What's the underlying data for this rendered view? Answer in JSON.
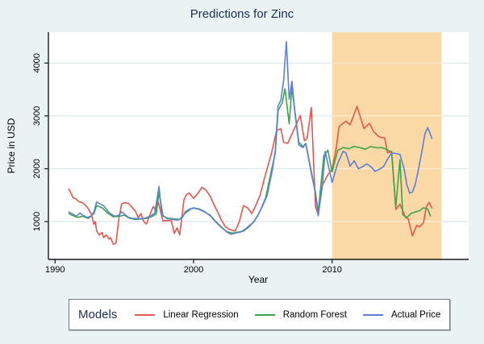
{
  "figure": {
    "title": "Predictions for Zinc"
  },
  "axes": {
    "x_label": "Year",
    "y_label": "Price in USD",
    "x_ticks": [
      1990,
      2000,
      2010
    ],
    "y_ticks": [
      1000,
      2000,
      3000,
      4000
    ]
  },
  "legend": {
    "title": "Models",
    "entries": [
      {
        "label": "Linear Regression",
        "color": "#e3574e"
      },
      {
        "label": "Random Forest",
        "color": "#3aa648"
      },
      {
        "label": "Actual Price",
        "color": "#5d7fd6"
      }
    ]
  },
  "colors": {
    "background": "#eaf2f3",
    "plot_background": "#ffffff",
    "gridline": "#dbe7ec",
    "gridline_over_band": "rgba(255,255,255,0.6)",
    "shaded_band": "#fbd9a6",
    "axis": "#1a1a1a",
    "title_text": "#1b2e55"
  },
  "chart_data": {
    "type": "line",
    "title": "Predictions for Zinc",
    "xlabel": "Year",
    "ylabel": "Price in USD",
    "x_range": [
      1989.5,
      2019.9
    ],
    "y_range": [
      280,
      4585
    ],
    "grid": "horizontal",
    "legend_position": "bottom",
    "shaded_region": {
      "x_start": 2010.0,
      "x_end": 2017.9,
      "meaning": "prediction window"
    },
    "series": [
      {
        "name": "Linear Regression",
        "color": "#e3574e",
        "points": [
          [
            1991.0,
            1615
          ],
          [
            1991.3,
            1450
          ],
          [
            1991.5,
            1430
          ],
          [
            1991.7,
            1380
          ],
          [
            1992.0,
            1355
          ],
          [
            1992.3,
            1280
          ],
          [
            1992.6,
            1155
          ],
          [
            1992.8,
            950
          ],
          [
            1992.9,
            1000
          ],
          [
            1993.0,
            820
          ],
          [
            1993.2,
            745
          ],
          [
            1993.4,
            795
          ],
          [
            1993.5,
            695
          ],
          [
            1993.7,
            745
          ],
          [
            1993.9,
            670
          ],
          [
            1994.0,
            695
          ],
          [
            1994.2,
            570
          ],
          [
            1994.4,
            595
          ],
          [
            1994.6,
            1050
          ],
          [
            1994.8,
            1330
          ],
          [
            1995.0,
            1355
          ],
          [
            1995.3,
            1345
          ],
          [
            1995.6,
            1255
          ],
          [
            1995.8,
            1195
          ],
          [
            1996.0,
            1075
          ],
          [
            1996.2,
            1150
          ],
          [
            1996.4,
            1000
          ],
          [
            1996.6,
            955
          ],
          [
            1997.0,
            1235
          ],
          [
            1997.1,
            1285
          ],
          [
            1997.3,
            1185
          ],
          [
            1997.4,
            1410
          ],
          [
            1997.8,
            1005
          ],
          [
            1998.0,
            1020
          ],
          [
            1998.4,
            1015
          ],
          [
            1998.6,
            775
          ],
          [
            1998.8,
            880
          ],
          [
            1999.0,
            750
          ],
          [
            1999.3,
            1410
          ],
          [
            1999.5,
            1515
          ],
          [
            1999.7,
            1540
          ],
          [
            2000.0,
            1440
          ],
          [
            2000.3,
            1530
          ],
          [
            2000.6,
            1650
          ],
          [
            2000.9,
            1590
          ],
          [
            2001.2,
            1480
          ],
          [
            2001.5,
            1300
          ],
          [
            2001.8,
            1150
          ],
          [
            2002.0,
            1030
          ],
          [
            2002.3,
            900
          ],
          [
            2002.6,
            850
          ],
          [
            2003.0,
            820
          ],
          [
            2003.3,
            1000
          ],
          [
            2003.6,
            1300
          ],
          [
            2003.9,
            1260
          ],
          [
            2004.2,
            1150
          ],
          [
            2004.5,
            1310
          ],
          [
            2004.8,
            1500
          ],
          [
            2005.2,
            1900
          ],
          [
            2005.6,
            2270
          ],
          [
            2006.0,
            2730
          ],
          [
            2006.3,
            2755
          ],
          [
            2006.5,
            2500
          ],
          [
            2006.8,
            2480
          ],
          [
            2007.0,
            2600
          ],
          [
            2007.4,
            2830
          ],
          [
            2007.7,
            3010
          ],
          [
            2008.0,
            2530
          ],
          [
            2008.2,
            2580
          ],
          [
            2008.5,
            3160
          ],
          [
            2008.8,
            1280
          ],
          [
            2009.0,
            1130
          ],
          [
            2009.3,
            1690
          ],
          [
            2009.7,
            1890
          ],
          [
            2010.0,
            1990
          ],
          [
            2010.3,
            2400
          ],
          [
            2010.5,
            2800
          ],
          [
            2011.0,
            2900
          ],
          [
            2011.3,
            2830
          ],
          [
            2011.8,
            3180
          ],
          [
            2012.3,
            2760
          ],
          [
            2012.7,
            2860
          ],
          [
            2013.0,
            2700
          ],
          [
            2013.4,
            2600
          ],
          [
            2013.8,
            2580
          ],
          [
            2014.0,
            2300
          ],
          [
            2014.3,
            2330
          ],
          [
            2014.6,
            1230
          ],
          [
            2014.9,
            1330
          ],
          [
            2015.3,
            1080
          ],
          [
            2015.5,
            1050
          ],
          [
            2015.8,
            725
          ],
          [
            2016.1,
            925
          ],
          [
            2016.3,
            900
          ],
          [
            2016.6,
            975
          ],
          [
            2016.8,
            1280
          ],
          [
            2017.0,
            1360
          ],
          [
            2017.2,
            1260
          ]
        ]
      },
      {
        "name": "Random Forest",
        "color": "#3aa648",
        "points": [
          [
            1991.0,
            1150
          ],
          [
            1991.3,
            1110
          ],
          [
            1991.6,
            1080
          ],
          [
            1992.0,
            1100
          ],
          [
            1992.4,
            1060
          ],
          [
            1992.8,
            1150
          ],
          [
            1993.0,
            1300
          ],
          [
            1993.4,
            1260
          ],
          [
            1993.8,
            1160
          ],
          [
            1994.2,
            1090
          ],
          [
            1994.6,
            1100
          ],
          [
            1995.0,
            1120
          ],
          [
            1995.4,
            1060
          ],
          [
            1995.8,
            1040
          ],
          [
            1996.2,
            1050
          ],
          [
            1996.6,
            1060
          ],
          [
            1997.0,
            1100
          ],
          [
            1997.3,
            1140
          ],
          [
            1997.5,
            1550
          ],
          [
            1997.8,
            1100
          ],
          [
            1998.2,
            1060
          ],
          [
            1998.6,
            1050
          ],
          [
            1999.0,
            1040
          ],
          [
            1999.4,
            1160
          ],
          [
            1999.8,
            1240
          ],
          [
            2000.0,
            1260
          ],
          [
            2000.4,
            1240
          ],
          [
            2000.8,
            1190
          ],
          [
            2001.2,
            1110
          ],
          [
            2001.6,
            990
          ],
          [
            2002.0,
            890
          ],
          [
            2002.4,
            810
          ],
          [
            2002.8,
            780
          ],
          [
            2003.2,
            800
          ],
          [
            2003.6,
            820
          ],
          [
            2004.0,
            900
          ],
          [
            2004.4,
            1010
          ],
          [
            2004.8,
            1200
          ],
          [
            2005.2,
            1450
          ],
          [
            2005.6,
            1950
          ],
          [
            2005.9,
            2300
          ],
          [
            2006.1,
            3100
          ],
          [
            2006.4,
            3250
          ],
          [
            2006.6,
            3515
          ],
          [
            2006.9,
            2850
          ],
          [
            2007.1,
            3540
          ],
          [
            2007.4,
            2900
          ],
          [
            2007.6,
            2500
          ],
          [
            2007.9,
            2420
          ],
          [
            2008.1,
            2480
          ],
          [
            2008.5,
            1950
          ],
          [
            2008.8,
            1550
          ],
          [
            2009.0,
            1180
          ],
          [
            2009.4,
            2250
          ],
          [
            2009.7,
            2350
          ],
          [
            2010.0,
            1940
          ],
          [
            2010.4,
            2345
          ],
          [
            2010.8,
            2400
          ],
          [
            2011.2,
            2380
          ],
          [
            2011.6,
            2420
          ],
          [
            2012.0,
            2400
          ],
          [
            2012.4,
            2370
          ],
          [
            2012.8,
            2420
          ],
          [
            2013.2,
            2395
          ],
          [
            2013.6,
            2400
          ],
          [
            2014.0,
            2360
          ],
          [
            2014.3,
            2300
          ],
          [
            2014.6,
            1280
          ],
          [
            2014.9,
            2170
          ],
          [
            2015.1,
            1130
          ],
          [
            2015.4,
            1075
          ],
          [
            2015.7,
            1155
          ],
          [
            2016.0,
            1180
          ],
          [
            2016.3,
            1205
          ],
          [
            2016.6,
            1260
          ],
          [
            2016.9,
            1240
          ],
          [
            2017.1,
            1105
          ]
        ]
      },
      {
        "name": "Actual Price",
        "color": "#5d7fd6",
        "points": [
          [
            1991.0,
            1180
          ],
          [
            1991.3,
            1140
          ],
          [
            1991.5,
            1100
          ],
          [
            1991.8,
            1160
          ],
          [
            1992.0,
            1120
          ],
          [
            1992.3,
            1080
          ],
          [
            1992.6,
            1100
          ],
          [
            1992.8,
            1180
          ],
          [
            1993.0,
            1370
          ],
          [
            1993.2,
            1340
          ],
          [
            1993.5,
            1300
          ],
          [
            1993.8,
            1200
          ],
          [
            1994.0,
            1150
          ],
          [
            1994.3,
            1100
          ],
          [
            1994.6,
            1120
          ],
          [
            1994.8,
            1185
          ],
          [
            1995.0,
            1140
          ],
          [
            1995.3,
            1080
          ],
          [
            1995.6,
            1060
          ],
          [
            1996.0,
            1055
          ],
          [
            1996.4,
            1055
          ],
          [
            1996.9,
            1105
          ],
          [
            1997.2,
            1160
          ],
          [
            1997.5,
            1665
          ],
          [
            1997.7,
            1130
          ],
          [
            1998.1,
            1055
          ],
          [
            1998.5,
            1040
          ],
          [
            1998.9,
            1030
          ],
          [
            1999.2,
            1080
          ],
          [
            1999.4,
            1185
          ],
          [
            1999.7,
            1235
          ],
          [
            2000.0,
            1255
          ],
          [
            2000.4,
            1230
          ],
          [
            2000.8,
            1180
          ],
          [
            2001.2,
            1120
          ],
          [
            2001.6,
            1000
          ],
          [
            2002.0,
            900
          ],
          [
            2002.4,
            800
          ],
          [
            2002.7,
            760
          ],
          [
            2003.0,
            780
          ],
          [
            2003.4,
            800
          ],
          [
            2003.8,
            870
          ],
          [
            2004.0,
            920
          ],
          [
            2004.3,
            980
          ],
          [
            2004.6,
            1100
          ],
          [
            2004.9,
            1250
          ],
          [
            2005.3,
            1485
          ],
          [
            2005.7,
            1995
          ],
          [
            2005.9,
            2350
          ],
          [
            2006.1,
            3185
          ],
          [
            2006.3,
            3300
          ],
          [
            2006.5,
            3670
          ],
          [
            2006.7,
            4405
          ],
          [
            2006.9,
            3315
          ],
          [
            2007.1,
            3655
          ],
          [
            2007.3,
            3100
          ],
          [
            2007.6,
            2450
          ],
          [
            2007.9,
            2400
          ],
          [
            2008.1,
            2475
          ],
          [
            2008.5,
            1915
          ],
          [
            2008.8,
            1535
          ],
          [
            2009.0,
            1110
          ],
          [
            2009.3,
            1700
          ],
          [
            2009.5,
            2325
          ],
          [
            2010.0,
            1740
          ],
          [
            2010.4,
            2100
          ],
          [
            2010.8,
            2330
          ],
          [
            2011.0,
            2300
          ],
          [
            2011.3,
            2050
          ],
          [
            2011.6,
            2150
          ],
          [
            2011.9,
            2000
          ],
          [
            2012.2,
            2040
          ],
          [
            2012.5,
            2090
          ],
          [
            2012.8,
            2040
          ],
          [
            2013.1,
            1950
          ],
          [
            2013.4,
            1990
          ],
          [
            2013.7,
            2035
          ],
          [
            2014.0,
            2180
          ],
          [
            2014.3,
            2295
          ],
          [
            2014.6,
            2290
          ],
          [
            2014.9,
            2270
          ],
          [
            2015.2,
            1995
          ],
          [
            2015.4,
            1700
          ],
          [
            2015.6,
            1535
          ],
          [
            2015.8,
            1560
          ],
          [
            2016.0,
            1700
          ],
          [
            2016.2,
            1945
          ],
          [
            2016.5,
            2350
          ],
          [
            2016.7,
            2655
          ],
          [
            2016.9,
            2780
          ],
          [
            2017.1,
            2650
          ],
          [
            2017.2,
            2575
          ]
        ]
      }
    ]
  }
}
